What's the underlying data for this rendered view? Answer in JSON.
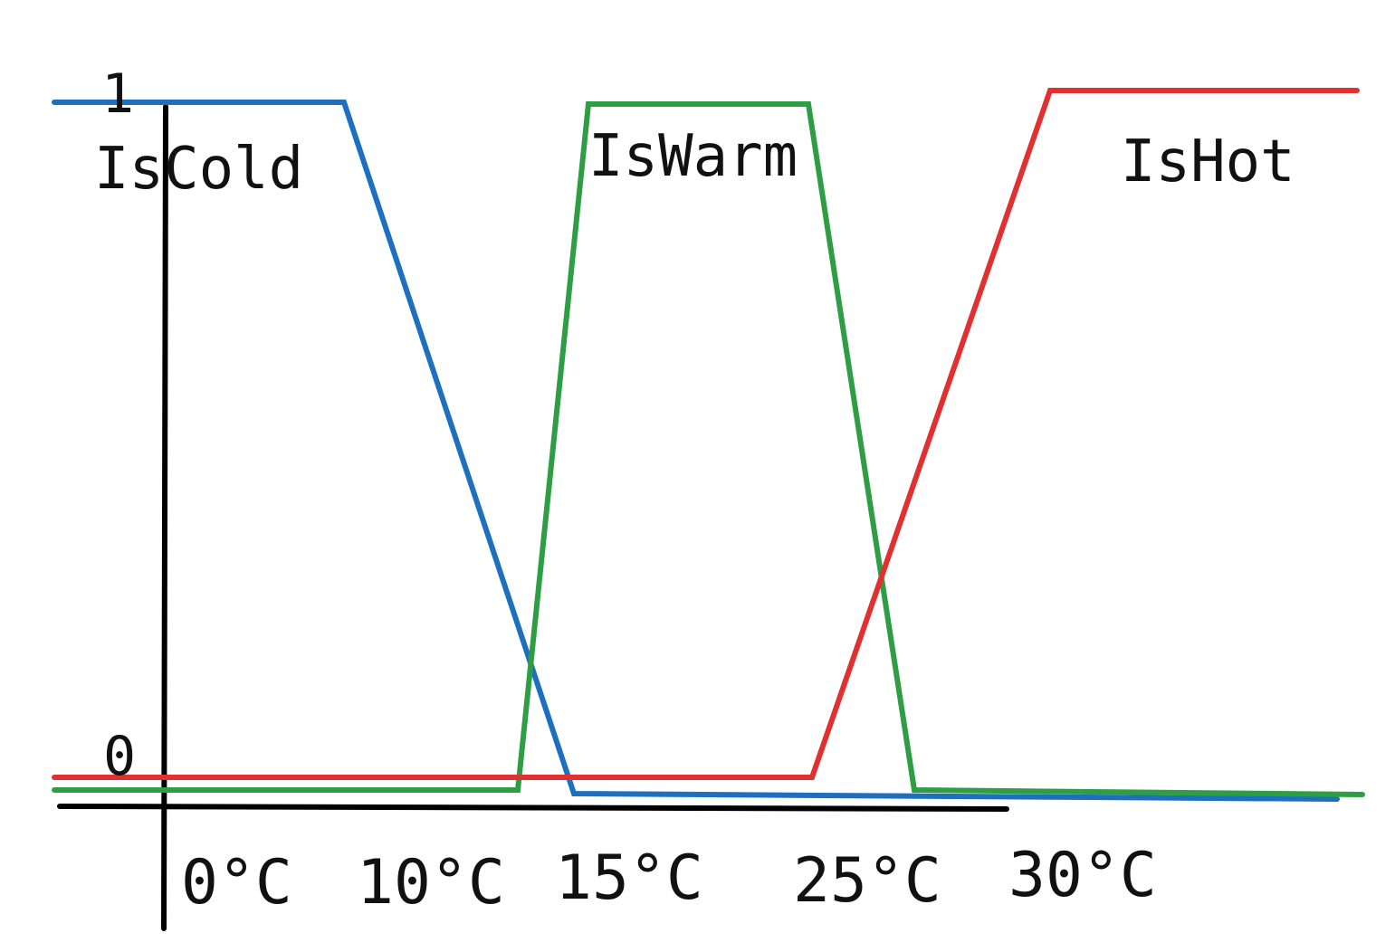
{
  "chart_data": {
    "type": "line",
    "x_tick_labels": [
      "0°C",
      "10°C",
      "15°C",
      "25°C",
      "30°C"
    ],
    "y_tick_labels": [
      "0",
      "1"
    ],
    "ylim": [
      0,
      1
    ],
    "grid": false,
    "series": [
      {
        "name": "IsCold",
        "color": "#1f6fbf",
        "points": [
          {
            "x": "-",
            "y": 1
          },
          {
            "x": "10°C",
            "y": 1
          },
          {
            "x": "15°C",
            "y": 0
          },
          {
            "x": "+",
            "y": 0
          }
        ]
      },
      {
        "name": "IsWarm",
        "color": "#2e9e44",
        "points": [
          {
            "x": "-",
            "y": 0
          },
          {
            "x": "10°C",
            "y": 0
          },
          {
            "x": "15°C",
            "y": 1
          },
          {
            "x": "25°C",
            "y": 1
          },
          {
            "x": "30°C",
            "y": 0
          },
          {
            "x": "+",
            "y": 0
          }
        ]
      },
      {
        "name": "IsHot",
        "color": "#e03030",
        "points": [
          {
            "x": "-",
            "y": 0
          },
          {
            "x": "25°C",
            "y": 0
          },
          {
            "x": "30°C",
            "y": 1
          },
          {
            "x": "+",
            "y": 1
          }
        ]
      }
    ]
  }
}
